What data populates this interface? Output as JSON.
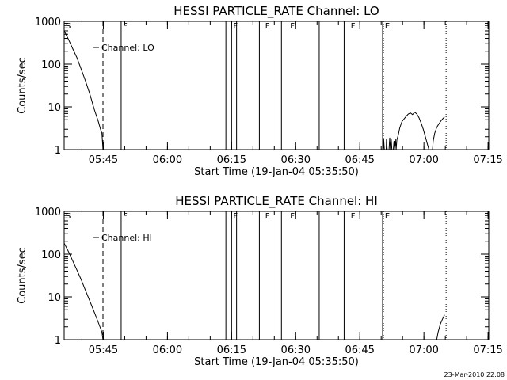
{
  "footer": {
    "timestamp": "23-Mar-2010 22:08"
  },
  "chart_data": [
    {
      "type": "line",
      "title": "HESSI PARTICLE_RATE Channel: LO",
      "xlabel": "Start Time (19-Jan-04 05:35:50)",
      "ylabel": "Counts/sec",
      "y_scale": "log",
      "ylim": [
        1,
        1000
      ],
      "xlim": [
        0,
        5960
      ],
      "x_ticks": [
        {
          "label": "05:45",
          "x": 550
        },
        {
          "label": "06:00",
          "x": 1450
        },
        {
          "label": "06:15",
          "x": 2350
        },
        {
          "label": "06:30",
          "x": 3250
        },
        {
          "label": "06:45",
          "x": 4150
        },
        {
          "label": "07:00",
          "x": 5050
        },
        {
          "label": "07:15",
          "x": 5950
        }
      ],
      "y_ticks": [
        {
          "label": "1",
          "y": 1
        },
        {
          "label": "10",
          "y": 10
        },
        {
          "label": "100",
          "y": 100
        },
        {
          "label": "1000",
          "y": 1000
        }
      ],
      "legend": {
        "label": "Channel: LO",
        "position": "top-left"
      },
      "series": [
        {
          "name": "Channel: LO",
          "segments": [
            [
              [
                0,
                600
              ],
              [
                60,
                380
              ],
              [
                120,
                230
              ],
              [
                180,
                140
              ],
              [
                240,
                75
              ],
              [
                300,
                40
              ],
              [
                360,
                20
              ],
              [
                420,
                9
              ],
              [
                480,
                4.5
              ],
              [
                510,
                3
              ],
              [
                530,
                2.4
              ],
              [
                545,
                1
              ]
            ],
            [
              [
                4480,
                1
              ],
              [
                4485,
                1.8
              ],
              [
                4495,
                1
              ]
            ],
            [
              [
                4520,
                1
              ],
              [
                4525,
                1.8
              ],
              [
                4535,
                1
              ]
            ],
            [
              [
                4560,
                1
              ],
              [
                4570,
                1.9
              ],
              [
                4580,
                1
              ],
              [
                4590,
                1.8
              ],
              [
                4600,
                1
              ]
            ],
            [
              [
                4620,
                1
              ],
              [
                4630,
                1.6
              ],
              [
                4640,
                1
              ],
              [
                4650,
                1.8
              ],
              [
                4660,
                1
              ],
              [
                4670,
                1.7
              ],
              [
                4690,
                2.2
              ],
              [
                4710,
                3.2
              ],
              [
                4740,
                4.5
              ],
              [
                4770,
                5.2
              ],
              [
                4800,
                6
              ],
              [
                4830,
                6.8
              ],
              [
                4860,
                7.2
              ],
              [
                4890,
                6.6
              ],
              [
                4920,
                7.5
              ],
              [
                4950,
                6.8
              ],
              [
                4980,
                5.6
              ],
              [
                5010,
                4.2
              ],
              [
                5040,
                3
              ],
              [
                5070,
                2
              ],
              [
                5100,
                1.3
              ],
              [
                5120,
                1
              ]
            ],
            [
              [
                5170,
                1
              ],
              [
                5180,
                1.6
              ],
              [
                5200,
                2.4
              ],
              [
                5230,
                3.3
              ],
              [
                5260,
                4
              ],
              [
                5290,
                4.7
              ],
              [
                5320,
                5.4
              ],
              [
                5340,
                5.8
              ]
            ]
          ]
        }
      ],
      "annotations": {
        "flags": [
          {
            "label": "S",
            "x": 0
          },
          {
            "label": "F",
            "x": 800
          },
          {
            "label": "F",
            "x": 2350
          },
          {
            "label": "F",
            "x": 2800
          },
          {
            "label": "F",
            "x": 3150
          },
          {
            "label": "F",
            "x": 4000
          },
          {
            "label": "E",
            "x": 4480
          }
        ],
        "solid_lines": [
          800,
          2270,
          2350,
          2420,
          2740,
          2930,
          3050,
          3580,
          3930,
          4470
        ],
        "dashed_lines": [
          545
        ],
        "dotted_lines": [
          4470,
          5350
        ]
      }
    },
    {
      "type": "line",
      "title": "HESSI PARTICLE_RATE Channel: HI",
      "xlabel": "Start Time (19-Jan-04 05:35:50)",
      "ylabel": "Counts/sec",
      "y_scale": "log",
      "ylim": [
        1,
        1000
      ],
      "xlim": [
        0,
        5960
      ],
      "x_ticks": [
        {
          "label": "05:45",
          "x": 550
        },
        {
          "label": "06:00",
          "x": 1450
        },
        {
          "label": "06:15",
          "x": 2350
        },
        {
          "label": "06:30",
          "x": 3250
        },
        {
          "label": "06:45",
          "x": 4150
        },
        {
          "label": "07:00",
          "x": 5050
        },
        {
          "label": "07:15",
          "x": 5950
        }
      ],
      "y_ticks": [
        {
          "label": "1",
          "y": 1
        },
        {
          "label": "10",
          "y": 10
        },
        {
          "label": "100",
          "y": 100
        },
        {
          "label": "1000",
          "y": 1000
        }
      ],
      "legend": {
        "label": "Channel: HI",
        "position": "top-left"
      },
      "series": [
        {
          "name": "Channel: HI",
          "segments": [
            [
              [
                0,
                180
              ],
              [
                60,
                115
              ],
              [
                120,
                70
              ],
              [
                180,
                42
              ],
              [
                240,
                25
              ],
              [
                300,
                14
              ],
              [
                360,
                8
              ],
              [
                420,
                4.5
              ],
              [
                480,
                2.5
              ],
              [
                530,
                1.5
              ],
              [
                545,
                1
              ]
            ],
            [
              [
                5230,
                1
              ],
              [
                5250,
                1.5
              ],
              [
                5280,
                2.3
              ],
              [
                5310,
                3
              ],
              [
                5330,
                3.5
              ],
              [
                5340,
                3.8
              ]
            ]
          ]
        }
      ],
      "annotations": {
        "flags": [
          {
            "label": "S",
            "x": 0
          },
          {
            "label": "F",
            "x": 800
          },
          {
            "label": "F",
            "x": 2350
          },
          {
            "label": "F",
            "x": 2800
          },
          {
            "label": "F",
            "x": 3150
          },
          {
            "label": "F",
            "x": 4000
          },
          {
            "label": "E",
            "x": 4480
          }
        ],
        "solid_lines": [
          800,
          2270,
          2350,
          2420,
          2740,
          2930,
          3050,
          3580,
          3930,
          4470
        ],
        "dashed_lines": [
          545
        ],
        "dotted_lines": [
          4470,
          5350
        ]
      }
    }
  ]
}
